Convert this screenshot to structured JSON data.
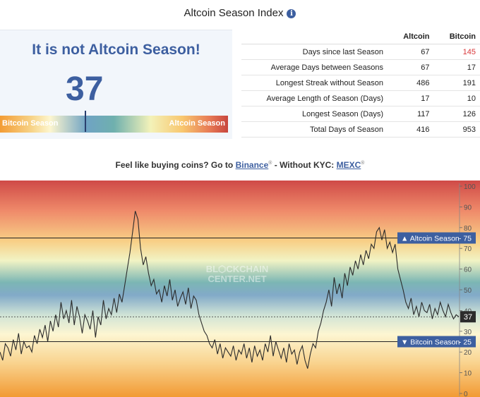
{
  "header": {
    "title": "Altcoin Season Index",
    "info_icon_glyph": "i"
  },
  "status": {
    "headline": "It is not Altcoin Season!",
    "index_value": "37",
    "index": 37,
    "gauge_left_label": "Bitcoin Season",
    "gauge_right_label": "Altcoin Season"
  },
  "stats_table": {
    "columns": [
      "Altcoin",
      "Bitcoin"
    ],
    "rows": [
      {
        "label": "Days since last Season",
        "altcoin": "67",
        "bitcoin": "145",
        "bitcoin_highlight": true
      },
      {
        "label": "Average Days between Seasons",
        "altcoin": "67",
        "bitcoin": "17"
      },
      {
        "label": "Longest Streak without Season",
        "altcoin": "486",
        "bitcoin": "191"
      },
      {
        "label": "Average Length of Season (Days)",
        "altcoin": "17",
        "bitcoin": "10"
      },
      {
        "label": "Longest Season (Days)",
        "altcoin": "117",
        "bitcoin": "126"
      },
      {
        "label": "Total Days of Season",
        "altcoin": "416",
        "bitcoin": "953"
      }
    ]
  },
  "promo": {
    "prefix": "Feel like buying coins? Go to ",
    "link1": "Binance",
    "middle": " - Without KYC: ",
    "link2": "MEXC",
    "ext_mark": "®"
  },
  "colors": {
    "accent": "#3d5fa0",
    "highlight_red": "#d9383a"
  },
  "chart_data": {
    "type": "line",
    "watermark": [
      "BL⬡CKCHAIN",
      "CENTER.NET"
    ],
    "ylim": [
      0,
      100
    ],
    "yticks": [
      0,
      10,
      20,
      30,
      40,
      50,
      60,
      70,
      80,
      90,
      100
    ],
    "reference_lines": [
      {
        "value": 75,
        "label": "Altcoin Season",
        "display": "75",
        "arrow": "▲"
      },
      {
        "value": 25,
        "label": "Bitcoin Season",
        "display": "25",
        "arrow": "▼"
      }
    ],
    "current_value": 37,
    "current_display": "37",
    "series": [
      {
        "values": [
          20,
          16,
          24,
          22,
          18,
          26,
          21,
          29,
          19,
          25,
          22,
          23,
          20,
          28,
          24,
          31,
          27,
          33,
          25,
          35,
          30,
          38,
          32,
          44,
          36,
          40,
          34,
          45,
          33,
          42,
          37,
          29,
          38,
          35,
          31,
          40,
          27,
          37,
          33,
          45,
          36,
          41,
          38,
          46,
          39,
          48,
          44,
          52,
          60,
          68,
          78,
          88,
          84,
          70,
          62,
          66,
          58,
          52,
          55,
          48,
          50,
          44,
          52,
          47,
          55,
          45,
          50,
          42,
          46,
          49,
          43,
          51,
          41,
          47,
          45,
          38,
          34,
          30,
          28,
          24,
          22,
          26,
          19,
          24,
          17,
          22,
          20,
          18,
          23,
          16,
          21,
          19,
          24,
          17,
          22,
          15,
          23,
          18,
          21,
          16,
          24,
          20,
          28,
          18,
          25,
          21,
          17,
          22,
          15,
          24,
          19,
          21,
          14,
          20,
          23,
          16,
          12,
          19,
          24,
          22,
          30,
          34,
          40,
          44,
          50,
          42,
          56,
          48,
          53,
          46,
          58,
          52,
          61,
          57,
          64,
          60,
          67,
          62,
          69,
          65,
          72,
          70,
          78,
          80,
          74,
          79,
          70,
          73,
          68,
          72,
          60,
          55,
          50,
          44,
          41,
          46,
          38,
          42,
          37,
          44,
          40,
          39,
          43,
          36,
          41,
          38,
          44,
          40,
          37,
          43,
          39,
          36,
          38,
          37
        ]
      }
    ]
  }
}
